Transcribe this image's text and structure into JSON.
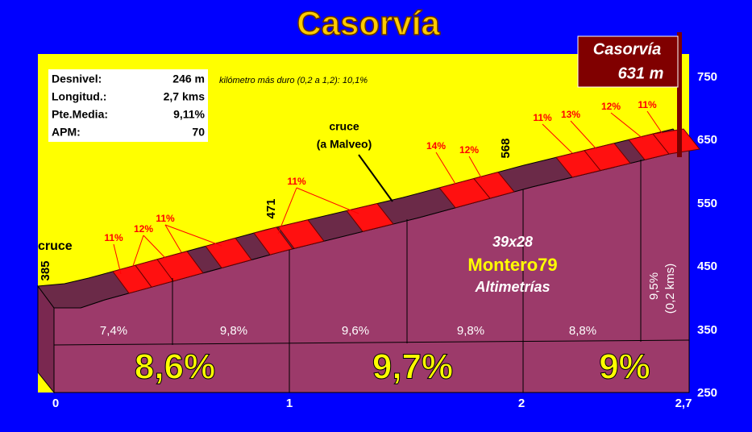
{
  "title": "Casorvía",
  "summit": {
    "name": "Casorvía",
    "altitude": "631 m"
  },
  "stats": [
    [
      "Desnivel:",
      "246 m"
    ],
    [
      "Longitud.:",
      "2,7 kms"
    ],
    [
      "Pte.Media:",
      "9,11%"
    ],
    [
      "APM:",
      "70"
    ]
  ],
  "hardest_km": "kilómetro más duro (0,2 a 1,2):  10,1%",
  "start_note": "cruce",
  "junction_note": [
    "cruce",
    "(a Malveo)"
  ],
  "altitude_markers": [
    "385",
    "471",
    "568"
  ],
  "segment_labels": [
    "11%",
    "12%",
    "11%",
    "11%",
    "14%",
    "12%",
    "11%",
    "13%",
    "12%",
    "11%"
  ],
  "km_gradients": [
    "7,4%",
    "9,8%",
    "9,6%",
    "9,8%",
    "8,8%"
  ],
  "last_section": [
    "9,5%",
    "(0,2 kms)"
  ],
  "section_gradients": [
    "8,6%",
    "9,7%",
    "9%"
  ],
  "credits": [
    "39x28",
    "Montero79",
    "Altimetrías"
  ],
  "y_axis": [
    "750",
    "650",
    "550",
    "450",
    "350",
    "250"
  ],
  "x_axis": [
    "0",
    "1",
    "2",
    "2,7"
  ]
}
